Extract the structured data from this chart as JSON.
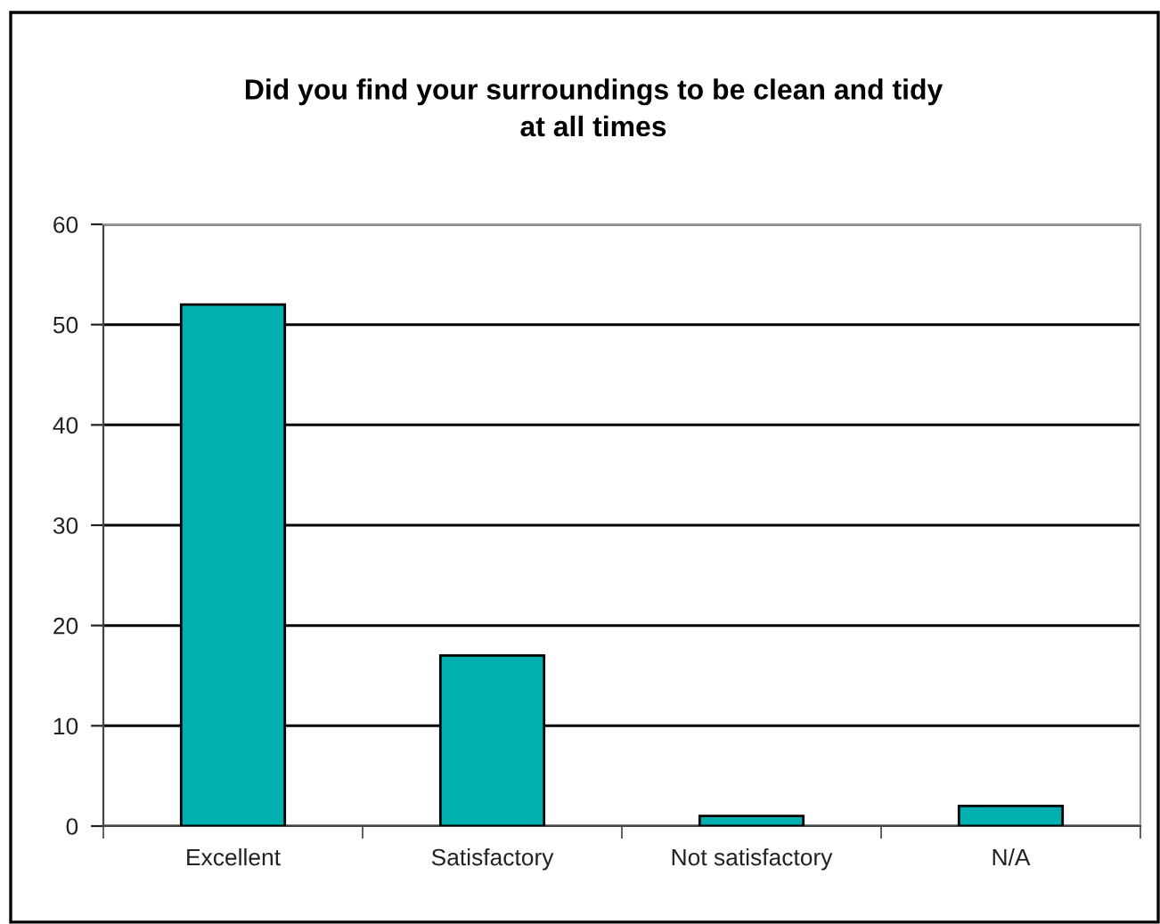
{
  "chart_data": {
    "type": "bar",
    "title": "Did you find your surroundings to be clean and tidy\nat all times",
    "categories": [
      "Excellent",
      "Satisfactory",
      "Not satisfactory",
      "N/A"
    ],
    "values": [
      52,
      17,
      1,
      2
    ],
    "color": "#00afaf",
    "ylim": [
      0,
      60
    ],
    "yticks": [
      0,
      10,
      20,
      30,
      40,
      50,
      60
    ],
    "grid": "y",
    "legend": false
  }
}
